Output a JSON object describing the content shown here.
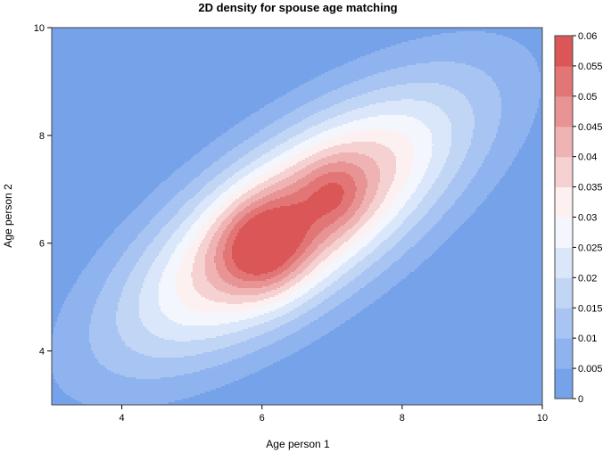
{
  "chart_data": {
    "type": "heatmap",
    "subtype": "filled-contour-density",
    "title": "2D density for spouse age matching",
    "xlabel": "Age person 1",
    "ylabel": "Age person 2",
    "xlim": [
      3,
      10
    ],
    "ylim": [
      3,
      10
    ],
    "xticks": [
      4,
      6,
      8,
      10
    ],
    "yticks": [
      4,
      6,
      8,
      10
    ],
    "grid": false,
    "legend": "right",
    "colorbar": {
      "min": 0,
      "max": 0.06,
      "step": 0.005,
      "tick_labels": [
        "0",
        "0.005",
        "0.01",
        "0.015",
        "0.02",
        "0.025",
        "0.03",
        "0.035",
        "0.04",
        "0.045",
        "0.05",
        "0.055",
        "0.06"
      ]
    },
    "colors": {
      "low": "#6a9ae8",
      "mid": "#ffffff",
      "high": "#d84848"
    },
    "density_modes": [
      {
        "x": 6.0,
        "y": 5.9,
        "peak": 0.058
      },
      {
        "x": 7.05,
        "y": 6.9,
        "peak": 0.048
      }
    ]
  }
}
